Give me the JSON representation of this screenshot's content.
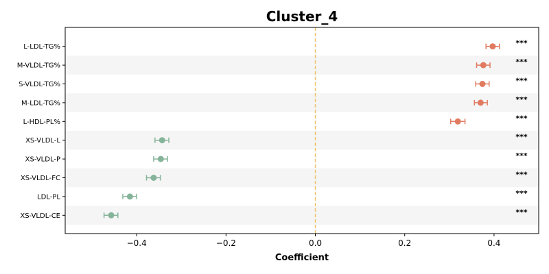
{
  "chart_data": {
    "type": "scatter",
    "subtype": "forest-plot",
    "title": "Cluster_4",
    "xlabel": "Coefficient",
    "ylabel": "",
    "xlim": [
      -0.56,
      0.5
    ],
    "xticks": [
      -0.4,
      -0.2,
      0.0,
      0.2,
      0.4
    ],
    "xtick_labels": [
      "−0.4",
      "−0.2",
      "0.0",
      "0.2",
      "0.4"
    ],
    "reference_line": 0.0,
    "grid": false,
    "alternating_row_shading": true,
    "colors": {
      "positive": "#e07b5f",
      "negative": "#86b49a",
      "reference_line": "#f0c26b",
      "row_shade": "#f5f5f5"
    },
    "categories": [
      "L-LDL-TG%",
      "M-VLDL-TG%",
      "S-VLDL-TG%",
      "M-LDL-TG%",
      "L-HDL-PL%",
      "XS-VLDL-L",
      "XS-VLDL-P",
      "XS-VLDL-FC",
      "LDL-PL",
      "XS-VLDL-CE"
    ],
    "values": [
      0.397,
      0.376,
      0.374,
      0.37,
      0.319,
      -0.343,
      -0.346,
      -0.362,
      -0.415,
      -0.457
    ],
    "ci_low": [
      0.382,
      0.361,
      0.359,
      0.356,
      0.303,
      -0.359,
      -0.362,
      -0.378,
      -0.431,
      -0.473
    ],
    "ci_high": [
      0.412,
      0.391,
      0.389,
      0.385,
      0.335,
      -0.328,
      -0.331,
      -0.347,
      -0.4,
      -0.442
    ],
    "significance": [
      "***",
      "***",
      "***",
      "***",
      "***",
      "***",
      "***",
      "***",
      "***",
      "***"
    ]
  }
}
